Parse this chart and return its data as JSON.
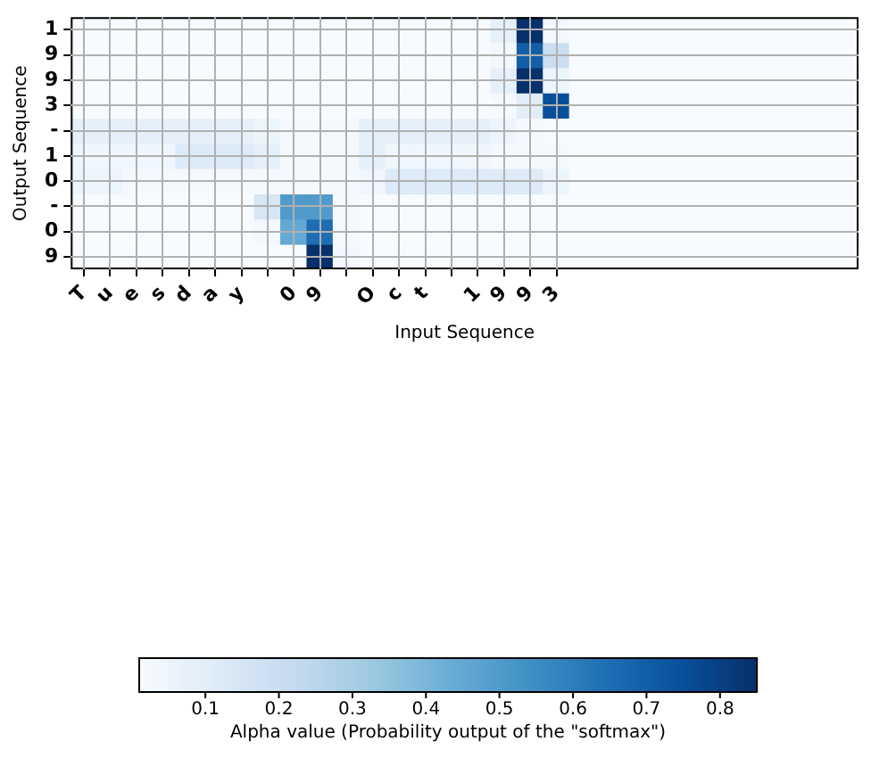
{
  "chart_data": {
    "type": "heatmap",
    "xlabel": "Input Sequence",
    "ylabel": "Output Sequence",
    "clabel": "Alpha value (Probability output of the \"softmax\")",
    "categories": [
      "T",
      "u",
      "e",
      "s",
      "d",
      "a",
      "y",
      null,
      "0",
      "9",
      null,
      "O",
      "c",
      "t",
      null,
      "1",
      "9",
      "9",
      "3",
      null,
      null,
      null,
      null,
      null,
      null,
      null,
      null,
      null,
      null,
      null
    ],
    "y_categories": [
      "1",
      "9",
      "9",
      "3",
      "-",
      "1",
      "0",
      "-",
      "0",
      "9"
    ],
    "cells": [
      [
        0.01,
        0.01,
        0.01,
        0.01,
        0.01,
        0.01,
        0.01,
        0.01,
        0.01,
        0.01,
        0.01,
        0.01,
        0.01,
        0.01,
        0.01,
        0.01,
        0.08,
        0.85,
        0.03,
        0.01,
        0.01,
        0.01,
        0.01,
        0.01,
        0.01,
        0.01,
        0.01,
        0.01,
        0.01,
        0.01
      ],
      [
        0.01,
        0.01,
        0.01,
        0.01,
        0.01,
        0.01,
        0.01,
        0.01,
        0.01,
        0.01,
        0.01,
        0.01,
        0.01,
        0.01,
        0.01,
        0.01,
        0.03,
        0.7,
        0.2,
        0.01,
        0.01,
        0.01,
        0.01,
        0.01,
        0.01,
        0.01,
        0.01,
        0.01,
        0.01,
        0.01
      ],
      [
        0.01,
        0.01,
        0.01,
        0.01,
        0.01,
        0.01,
        0.01,
        0.01,
        0.01,
        0.01,
        0.01,
        0.01,
        0.01,
        0.01,
        0.01,
        0.01,
        0.08,
        0.85,
        0.05,
        0.01,
        0.01,
        0.01,
        0.01,
        0.01,
        0.01,
        0.01,
        0.01,
        0.01,
        0.01,
        0.01
      ],
      [
        0.01,
        0.01,
        0.01,
        0.01,
        0.01,
        0.01,
        0.01,
        0.01,
        0.01,
        0.01,
        0.01,
        0.01,
        0.01,
        0.01,
        0.01,
        0.01,
        0.02,
        0.1,
        0.75,
        0.01,
        0.01,
        0.01,
        0.01,
        0.01,
        0.01,
        0.01,
        0.01,
        0.01,
        0.01,
        0.01
      ],
      [
        0.08,
        0.08,
        0.08,
        0.08,
        0.08,
        0.08,
        0.08,
        0.05,
        0.02,
        0.02,
        0.02,
        0.08,
        0.08,
        0.08,
        0.08,
        0.08,
        0.05,
        0.02,
        0.01,
        0.01,
        0.01,
        0.01,
        0.01,
        0.01,
        0.01,
        0.01,
        0.01,
        0.01,
        0.01,
        0.01
      ],
      [
        0.04,
        0.04,
        0.04,
        0.04,
        0.12,
        0.12,
        0.12,
        0.08,
        0.02,
        0.02,
        0.02,
        0.08,
        0.04,
        0.04,
        0.04,
        0.04,
        0.02,
        0.02,
        0.02,
        0.01,
        0.01,
        0.01,
        0.01,
        0.01,
        0.01,
        0.01,
        0.01,
        0.01,
        0.01,
        0.01
      ],
      [
        0.05,
        0.05,
        0.02,
        0.02,
        0.02,
        0.02,
        0.02,
        0.02,
        0.02,
        0.02,
        0.02,
        0.04,
        0.12,
        0.12,
        0.12,
        0.12,
        0.12,
        0.12,
        0.05,
        0.01,
        0.01,
        0.01,
        0.01,
        0.01,
        0.01,
        0.01,
        0.01,
        0.01,
        0.01,
        0.01
      ],
      [
        0.01,
        0.01,
        0.01,
        0.01,
        0.01,
        0.01,
        0.01,
        0.15,
        0.5,
        0.5,
        0.02,
        0.01,
        0.01,
        0.01,
        0.01,
        0.01,
        0.01,
        0.01,
        0.01,
        0.01,
        0.01,
        0.01,
        0.01,
        0.01,
        0.01,
        0.01,
        0.01,
        0.01,
        0.01,
        0.01
      ],
      [
        0.01,
        0.01,
        0.01,
        0.01,
        0.01,
        0.01,
        0.01,
        0.03,
        0.45,
        0.65,
        0.02,
        0.01,
        0.01,
        0.01,
        0.01,
        0.01,
        0.01,
        0.01,
        0.01,
        0.01,
        0.01,
        0.01,
        0.01,
        0.01,
        0.01,
        0.01,
        0.01,
        0.01,
        0.01,
        0.01
      ],
      [
        0.01,
        0.01,
        0.01,
        0.01,
        0.01,
        0.01,
        0.01,
        0.01,
        0.01,
        0.85,
        0.03,
        0.01,
        0.01,
        0.01,
        0.01,
        0.01,
        0.01,
        0.01,
        0.01,
        0.01,
        0.01,
        0.01,
        0.01,
        0.01,
        0.01,
        0.01,
        0.01,
        0.01,
        0.01,
        0.01
      ]
    ],
    "clim": [
      0.01,
      0.85
    ],
    "cticks": [
      0.1,
      0.2,
      0.3,
      0.4,
      0.5,
      0.6,
      0.7,
      0.8
    ],
    "grid": true
  }
}
